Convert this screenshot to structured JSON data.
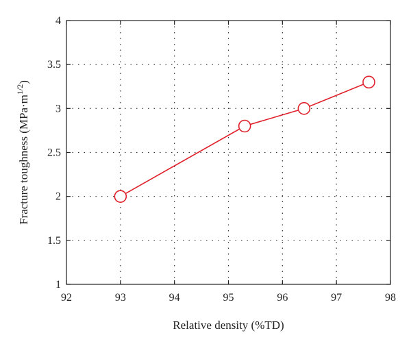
{
  "chart_data": {
    "type": "line",
    "title": "",
    "xlabel": "Relative density (%TD)",
    "ylabel": {
      "prefix": "Fracture toughness (MPa·m",
      "exponent": "1/2",
      "suffix": ")"
    },
    "xlim": [
      92,
      98
    ],
    "ylim": [
      1,
      4
    ],
    "xticks": [
      "92",
      "93",
      "94",
      "95",
      "96",
      "97",
      "98"
    ],
    "yticks": [
      "1",
      "1.5",
      "2",
      "2.5",
      "3",
      "3.5",
      "4"
    ],
    "grid": true,
    "series": [
      {
        "color": "#e0202a",
        "marker": "open-circle",
        "x": [
          93.0,
          95.3,
          96.4,
          97.6
        ],
        "y": [
          2.0,
          2.8,
          3.0,
          3.3
        ]
      }
    ]
  }
}
